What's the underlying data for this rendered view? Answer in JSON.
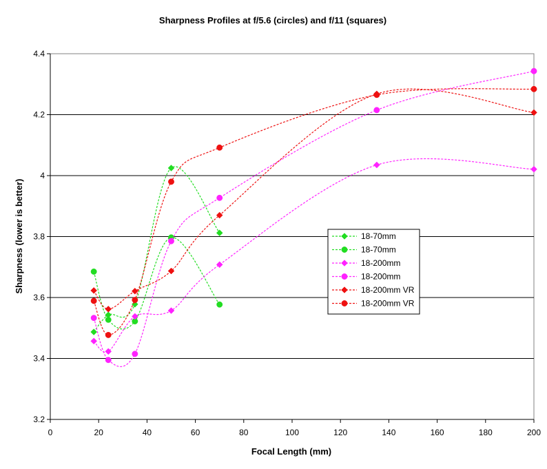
{
  "chart_data": {
    "type": "line",
    "title": "Sharpness Profiles at f/5.6 (circles) and f/11 (squares)",
    "xlabel": "Focal Length (mm)",
    "ylabel": "Sharpness (lower is better)",
    "xlim": [
      0,
      200
    ],
    "ylim": [
      3.2,
      4.4
    ],
    "xticks": [
      0,
      20,
      40,
      60,
      80,
      100,
      120,
      140,
      160,
      180,
      200
    ],
    "yticks": [
      3.2,
      3.4,
      3.6,
      3.8,
      4.0,
      4.2,
      4.4
    ],
    "xtick_labels": [
      "0",
      "20",
      "40",
      "60",
      "80",
      "100",
      "120",
      "140",
      "160",
      "180",
      "200"
    ],
    "ytick_labels": [
      "3.2",
      "3.4",
      "3.6",
      "3.8",
      "4",
      "4.2",
      "4.4"
    ],
    "grid": "horizontal",
    "legend_position": "right",
    "series": [
      {
        "name": "18-70mm",
        "color": "#22dd22",
        "marker": "diamond",
        "x": [
          18,
          24,
          35,
          50,
          70
        ],
        "y": [
          3.487,
          3.543,
          3.578,
          4.025,
          3.812
        ]
      },
      {
        "name": "18-70mm",
        "color": "#22dd22",
        "marker": "circle",
        "x": [
          18,
          24,
          35,
          50,
          70
        ],
        "y": [
          3.685,
          3.527,
          3.522,
          3.797,
          3.577
        ]
      },
      {
        "name": "18-200mm",
        "color": "#ff22ff",
        "marker": "diamond",
        "x": [
          18,
          24,
          35,
          50,
          70,
          135,
          200
        ],
        "y": [
          3.457,
          3.423,
          3.538,
          3.557,
          3.708,
          4.035,
          4.021
        ]
      },
      {
        "name": "18-200mm",
        "color": "#ff22ff",
        "marker": "circle",
        "x": [
          18,
          24,
          35,
          50,
          70,
          135,
          200
        ],
        "y": [
          3.533,
          3.395,
          3.415,
          3.785,
          3.927,
          4.215,
          4.343
        ]
      },
      {
        "name": "18-200mm VR",
        "color": "#ee1111",
        "marker": "diamond",
        "x": [
          18,
          24,
          35,
          50,
          70,
          135,
          200
        ],
        "y": [
          3.623,
          3.562,
          3.621,
          3.687,
          3.87,
          4.268,
          4.207
        ]
      },
      {
        "name": "18-200mm VR",
        "color": "#ee1111",
        "marker": "circle",
        "x": [
          18,
          24,
          35,
          50,
          70,
          135,
          200
        ],
        "y": [
          3.589,
          3.477,
          3.592,
          3.98,
          4.092,
          4.265,
          4.284
        ]
      }
    ]
  }
}
